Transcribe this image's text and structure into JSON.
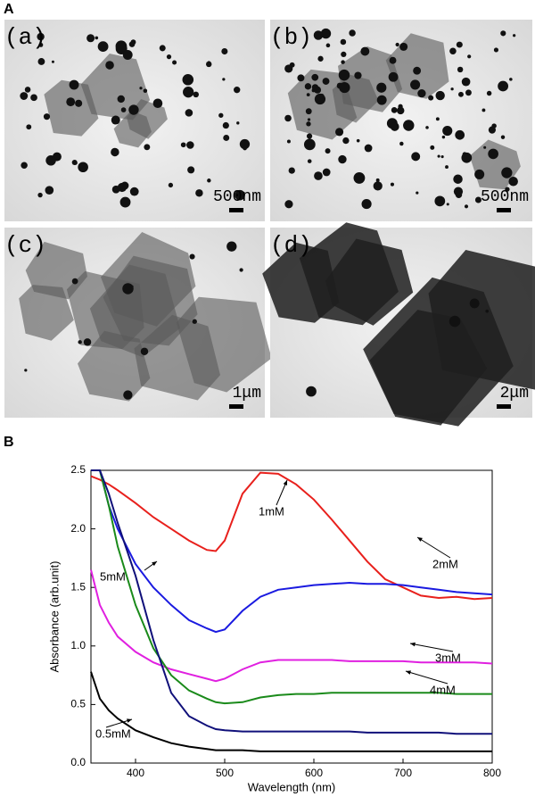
{
  "images_panel": {
    "label": "A",
    "images": [
      {
        "label": "(a)",
        "scale": "500nm"
      },
      {
        "label": "(b)",
        "scale": "500nm"
      },
      {
        "label": "(c)",
        "scale": "1μm"
      },
      {
        "label": "(d)",
        "scale": "2μm"
      }
    ]
  },
  "chart_data": {
    "type": "line",
    "panel_label": "B",
    "x_label": "Wavelength (nm)",
    "y_label": "Absorbance (arb.unit)",
    "x": [
      350,
      360,
      370,
      380,
      400,
      420,
      440,
      460,
      480,
      490,
      500,
      520,
      540,
      560,
      580,
      600,
      620,
      640,
      660,
      680,
      700,
      720,
      740,
      760,
      780,
      800
    ],
    "series": [
      {
        "name": "1mM",
        "color": "#e8201c",
        "values": [
          2.45,
          2.42,
          2.38,
          2.33,
          2.22,
          2.1,
          2.0,
          1.9,
          1.82,
          1.81,
          1.9,
          2.3,
          2.48,
          2.47,
          2.38,
          2.25,
          2.08,
          1.9,
          1.72,
          1.57,
          1.5,
          1.43,
          1.41,
          1.42,
          1.4,
          1.41
        ]
      },
      {
        "name": "2mM",
        "color": "#1a1ae0",
        "values": [
          2.5,
          2.5,
          2.2,
          2.0,
          1.7,
          1.5,
          1.35,
          1.22,
          1.15,
          1.12,
          1.14,
          1.3,
          1.42,
          1.48,
          1.5,
          1.52,
          1.53,
          1.54,
          1.53,
          1.53,
          1.52,
          1.5,
          1.48,
          1.46,
          1.45,
          1.44
        ]
      },
      {
        "name": "3mM",
        "color": "#e020e0",
        "values": [
          1.65,
          1.35,
          1.2,
          1.08,
          0.95,
          0.86,
          0.8,
          0.76,
          0.72,
          0.7,
          0.72,
          0.8,
          0.86,
          0.88,
          0.88,
          0.88,
          0.88,
          0.87,
          0.87,
          0.87,
          0.87,
          0.86,
          0.86,
          0.86,
          0.86,
          0.85
        ]
      },
      {
        "name": "4mM",
        "color": "#1a8a1a",
        "values": [
          2.5,
          2.5,
          2.2,
          1.85,
          1.35,
          0.98,
          0.75,
          0.62,
          0.55,
          0.52,
          0.51,
          0.52,
          0.56,
          0.58,
          0.59,
          0.59,
          0.6,
          0.6,
          0.6,
          0.6,
          0.6,
          0.6,
          0.6,
          0.59,
          0.59,
          0.59
        ]
      },
      {
        "name": "5mM",
        "color": "#10107a",
        "values": [
          2.5,
          2.5,
          2.3,
          2.05,
          1.6,
          1.05,
          0.6,
          0.4,
          0.32,
          0.29,
          0.28,
          0.27,
          0.27,
          0.27,
          0.27,
          0.27,
          0.27,
          0.27,
          0.26,
          0.26,
          0.26,
          0.26,
          0.26,
          0.25,
          0.25,
          0.25
        ]
      },
      {
        "name": "0.5mM",
        "color": "#000000",
        "values": [
          0.78,
          0.55,
          0.45,
          0.38,
          0.28,
          0.22,
          0.17,
          0.14,
          0.12,
          0.11,
          0.11,
          0.11,
          0.1,
          0.1,
          0.1,
          0.1,
          0.1,
          0.1,
          0.1,
          0.1,
          0.1,
          0.1,
          0.1,
          0.1,
          0.1,
          0.1
        ]
      }
    ],
    "xlim": [
      350,
      800
    ],
    "xticks": [
      400,
      500,
      600,
      700,
      800
    ],
    "ylim": [
      0,
      2.5
    ],
    "yticks": [
      {
        "value": 0,
        "label": "0.0"
      },
      0.5,
      {
        "value": 1,
        "label": "1.0"
      },
      1.5,
      {
        "value": 2,
        "label": "2.0"
      },
      2.5
    ]
  }
}
